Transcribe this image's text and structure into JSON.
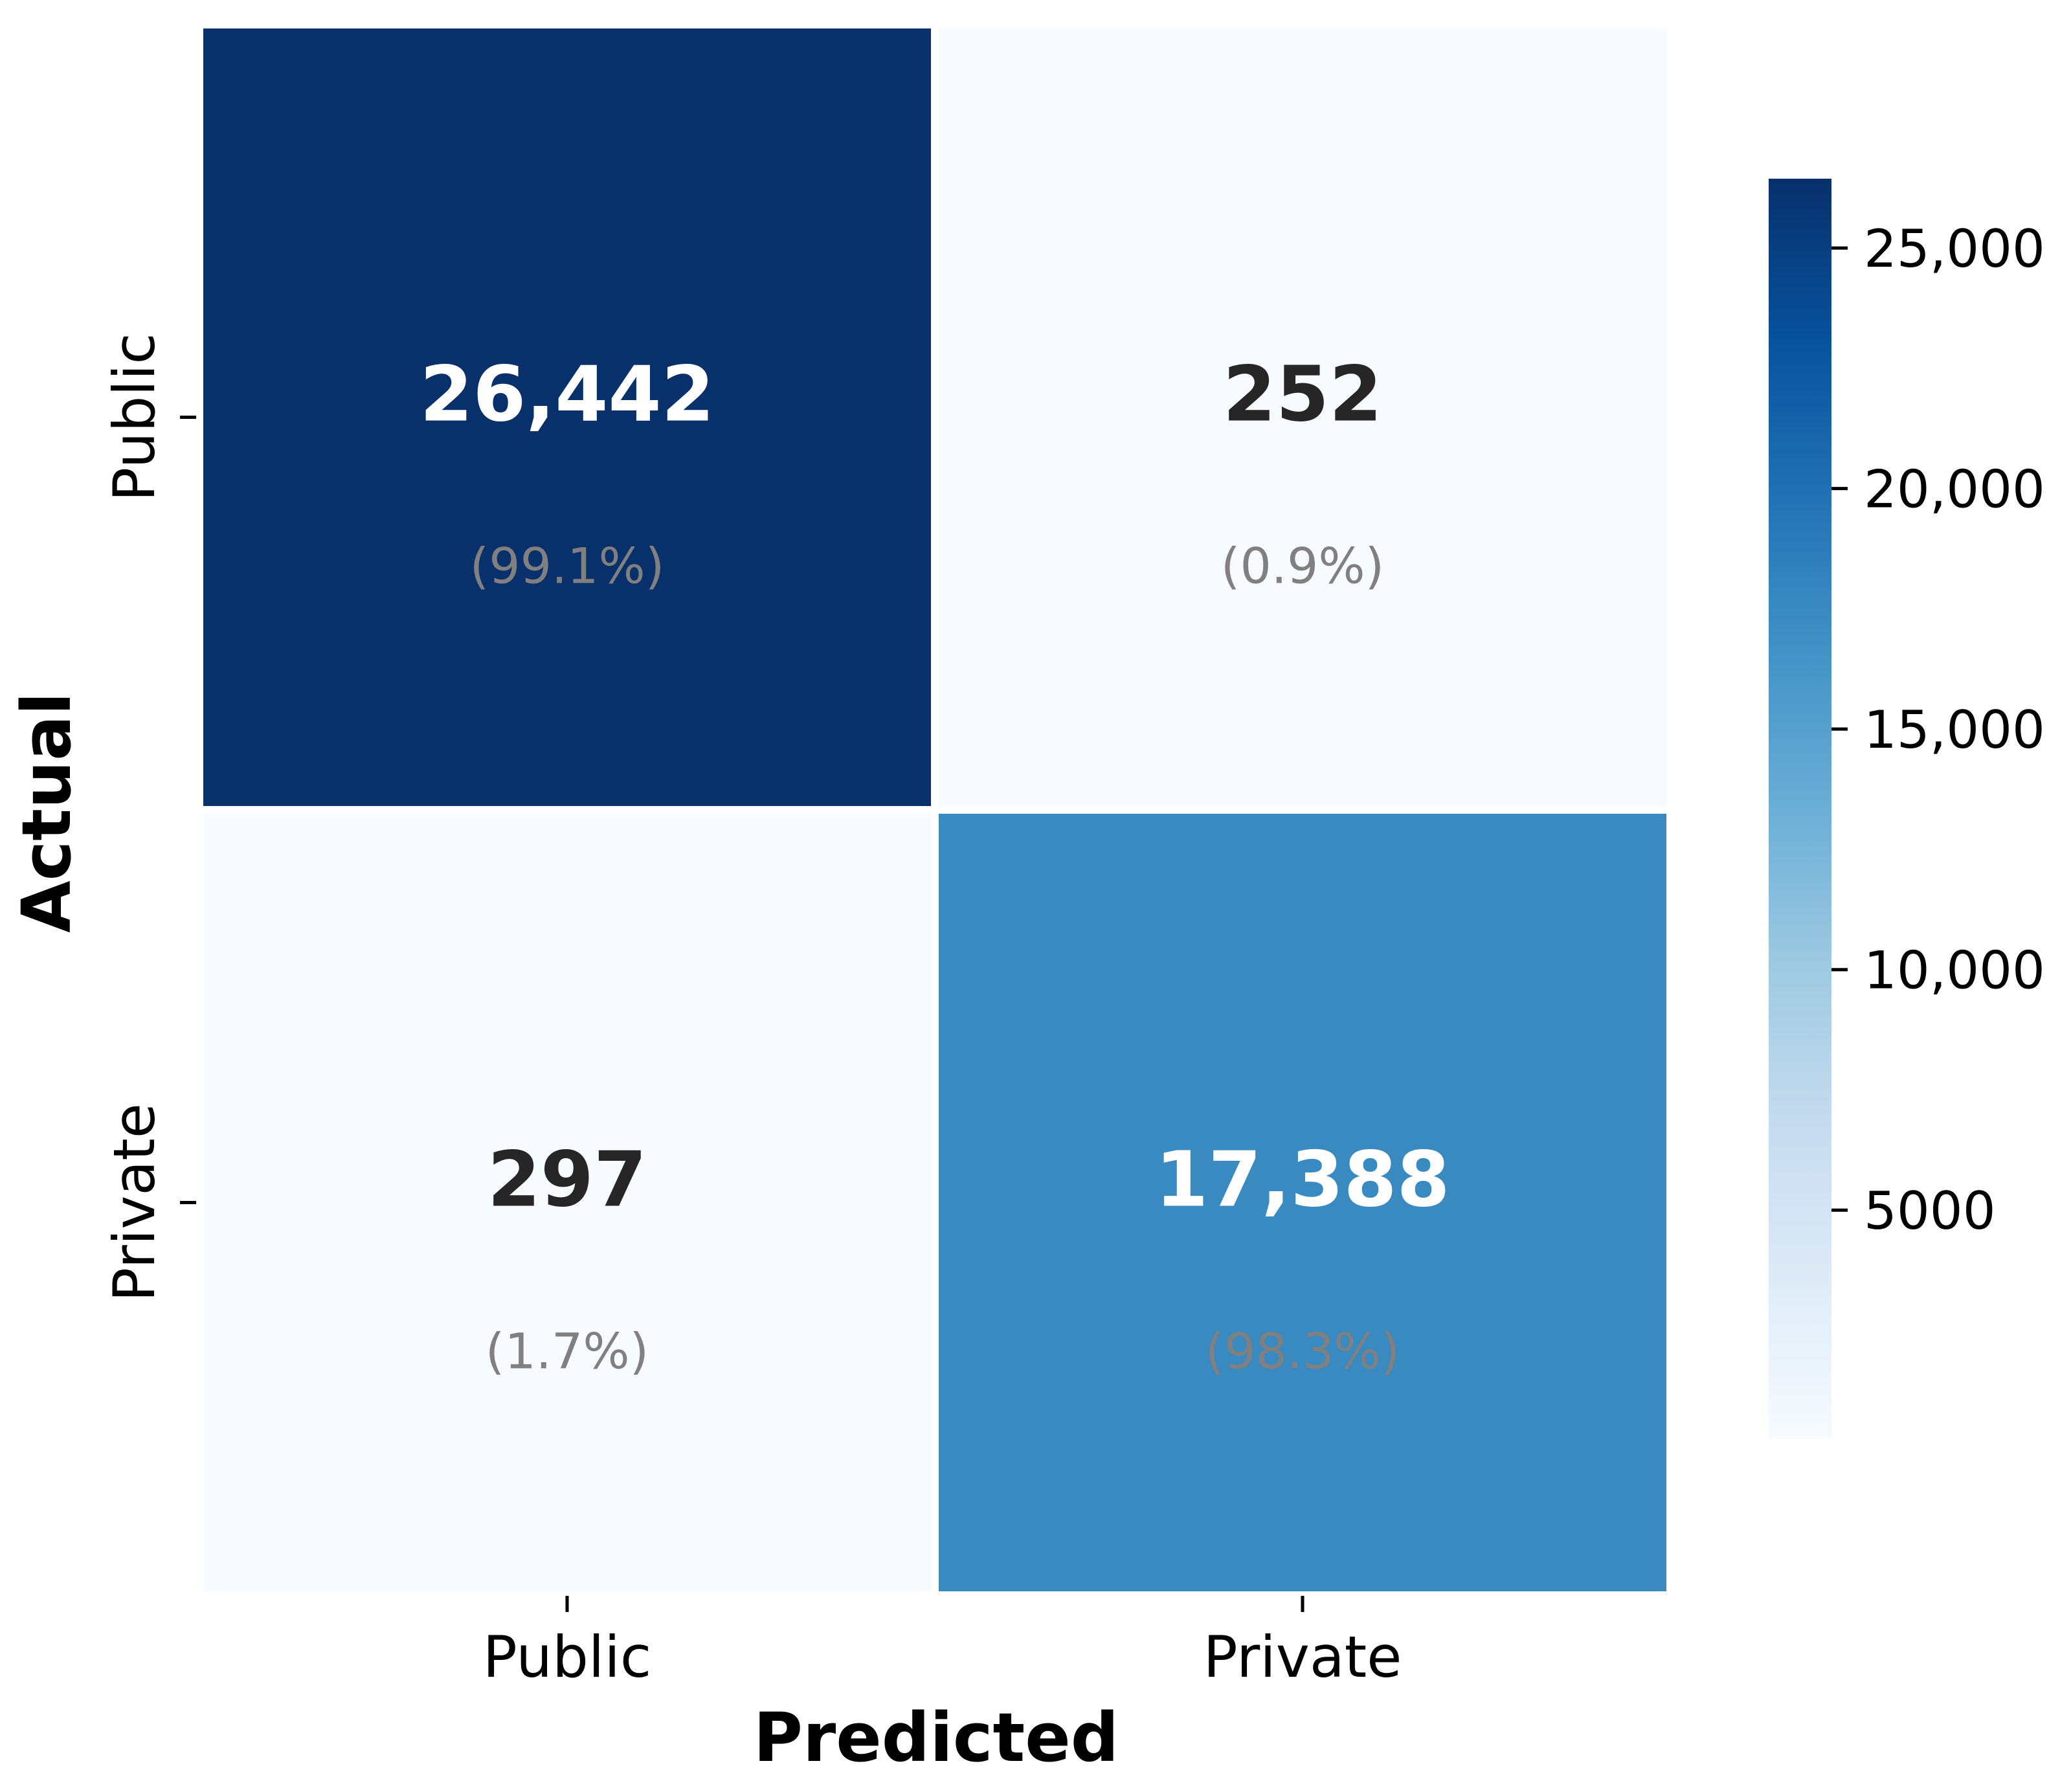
{
  "chart_data": {
    "type": "heatmap",
    "title": "",
    "xlabel": "Predicted",
    "ylabel": "Actual",
    "x_categories": [
      "Public",
      "Private"
    ],
    "y_categories": [
      "Public",
      "Private"
    ],
    "counts": [
      [
        26442,
        252
      ],
      [
        297,
        17388
      ]
    ],
    "count_labels": [
      [
        "26,442",
        "252"
      ],
      [
        "297",
        "17,388"
      ]
    ],
    "percent_labels": [
      [
        "(99.1%)",
        "(0.9%)"
      ],
      [
        "(1.7%)",
        "(98.3%)"
      ]
    ],
    "colorbar": {
      "range": [
        252,
        26442
      ],
      "ticks": [
        5000,
        10000,
        15000,
        20000,
        25000
      ],
      "tick_labels": [
        "5000",
        "10,000",
        "15,000",
        "20,000",
        "25,000"
      ],
      "colormap": "Blues"
    },
    "colors": {
      "count_text_dark": "#262626",
      "count_text_light": "#ffffff",
      "percent_text": "#808080",
      "cell_border": "#ffffff"
    },
    "grid": false,
    "legend": "colorbar right"
  }
}
